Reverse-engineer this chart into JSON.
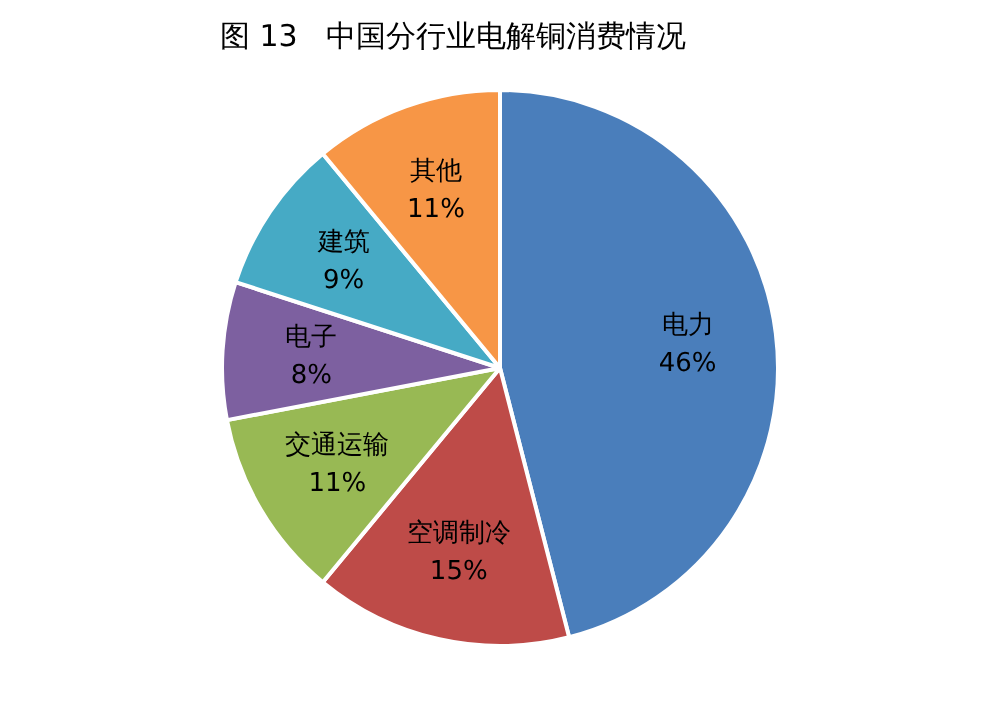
{
  "chart_data": {
    "type": "pie",
    "title": "图 13   中国分行业电解铜消费情况",
    "categories": [
      "电力",
      "空调制冷",
      "交通运输",
      "电子",
      "建筑",
      "其他"
    ],
    "values": [
      46,
      15,
      11,
      8,
      9,
      11
    ],
    "colors": [
      "#4a7ebb",
      "#be4b48",
      "#98b954",
      "#7d60a0",
      "#46aac5",
      "#f79646"
    ],
    "value_labels": [
      "46%",
      "15%",
      "11%",
      "8%",
      "9%",
      "11%"
    ],
    "legend": false
  }
}
